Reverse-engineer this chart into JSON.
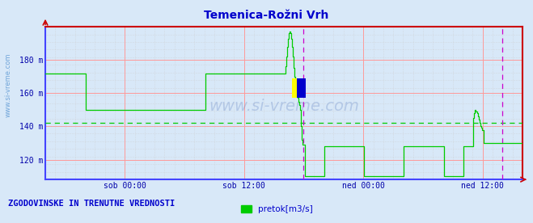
{
  "title": "Temenica-Rožni Vrh",
  "title_color": "#0000cc",
  "bg_color": "#d8e8f8",
  "plot_bg_color": "#d8e8f8",
  "ytick_labels": [
    "120 m",
    "140 m",
    "160 m",
    "180 m"
  ],
  "ytick_values": [
    120,
    140,
    160,
    180
  ],
  "ylim": [
    108,
    200
  ],
  "xlim": [
    0,
    576
  ],
  "xtick_positions": [
    96,
    240,
    384,
    528
  ],
  "xtick_labels": [
    "sob 00:00",
    "sob 12:00",
    "ned 00:00",
    "ned 12:00"
  ],
  "grid_color_major": "#ff9999",
  "grid_color_minor": "#cccccc",
  "line_color": "#00cc00",
  "avg_line_color": "#00cc00",
  "avg_line_y": 142,
  "border_color_left": "#4444ff",
  "border_color_bottom": "#4444ff",
  "border_color_right": "#cc0000",
  "border_color_top": "#cc0000",
  "vline_color": "#cc00cc",
  "vline_x": 312,
  "vline2_x": 552,
  "footer_text": "ZGODOVINSKE IN TRENUTNE VREDNOSTI",
  "footer_color": "#0000cc",
  "legend_label": "pretok[m3/s]",
  "legend_color": "#00cc00",
  "watermark": "www.si-vreme.com",
  "left_text": "www.si-vreme.com",
  "series_x": [
    0,
    48,
    49,
    96,
    97,
    192,
    193,
    240,
    241,
    288,
    289,
    290,
    291,
    292,
    293,
    294,
    295,
    296,
    297,
    298,
    299,
    300,
    301,
    302,
    303,
    304,
    305,
    306,
    307,
    308,
    309,
    310,
    311,
    312,
    313,
    336,
    337,
    360,
    361,
    384,
    385,
    432,
    433,
    456,
    457,
    480,
    481,
    504,
    505,
    516,
    517,
    518,
    519,
    520,
    521,
    522,
    523,
    524,
    525,
    526,
    527,
    528,
    529,
    552,
    553,
    576
  ],
  "series_y": [
    172,
    172,
    150,
    150,
    150,
    150,
    172,
    172,
    172,
    172,
    172,
    176,
    182,
    188,
    193,
    196,
    197,
    196,
    193,
    188,
    182,
    175,
    170,
    165,
    161,
    159,
    157,
    155,
    153,
    150,
    140,
    132,
    129,
    129,
    110,
    110,
    128,
    128,
    128,
    128,
    110,
    110,
    128,
    128,
    128,
    128,
    110,
    110,
    128,
    128,
    145,
    148,
    150,
    149,
    148,
    146,
    144,
    142,
    140,
    139,
    138,
    138,
    130,
    130,
    130,
    130
  ]
}
